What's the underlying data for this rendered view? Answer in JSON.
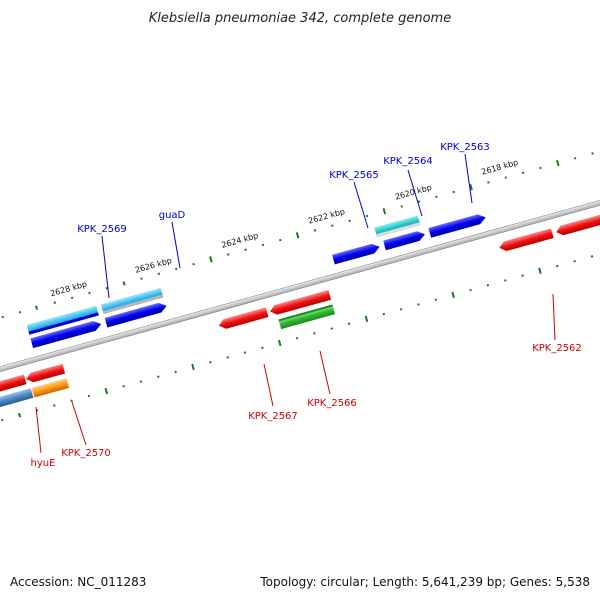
{
  "title": "Klebsiella pneumoniae 342, complete genome",
  "footer": {
    "accession": "Accession: NC_011283",
    "summary": "Topology: circular; Length: 5,641,239 bp; Genes: 5,538"
  },
  "colors": {
    "forward_label": "#0000cc",
    "reverse_label": "#cc0000",
    "backbone": "#808080",
    "tick": "#1a7a1a"
  },
  "scale_labels": {
    "kb2618": "2618 kbp",
    "kb2620": "2620 kbp",
    "kb2622": "2622 kbp",
    "kb2624": "2624 kbp",
    "kb2626": "2626 kbp",
    "kb2628": "2628 kbp"
  },
  "gene_labels": {
    "kpk2569": "KPK_2569",
    "guaD": "guaD",
    "kpk2565": "KPK_2565",
    "kpk2564": "KPK_2564",
    "kpk2563": "KPK_2563",
    "kpk2562": "KPK_2562",
    "kpk2567": "KPK_2567",
    "kpk2566": "KPK_2566",
    "kpk2570": "KPK_2570",
    "hyuE": "hyuE"
  },
  "feature_colors": {
    "forward_gene": "blue",
    "forward_cds": "light-blue",
    "forward_rna": "teal",
    "reverse_gene": "red",
    "reverse_cds": "green",
    "reverse_other": "orange",
    "reverse_cds_alt": "steel-blue"
  }
}
